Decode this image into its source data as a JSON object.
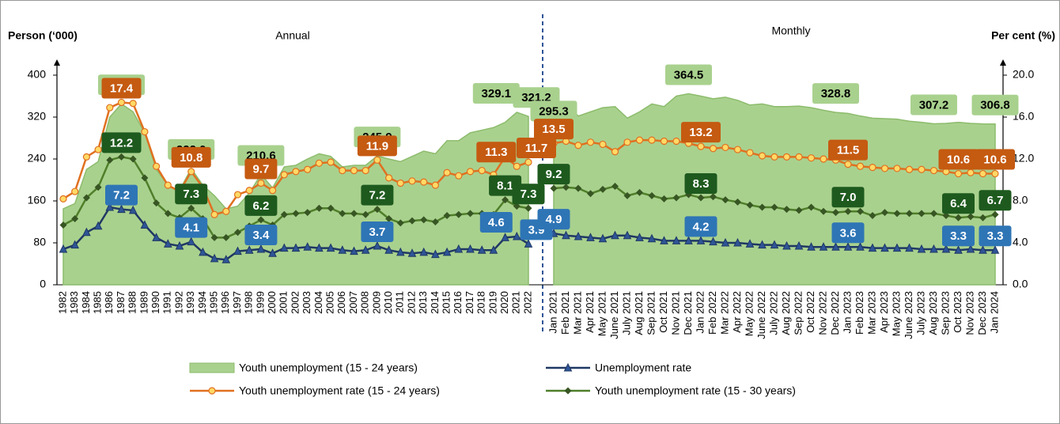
{
  "chart_data": {
    "type": "combo",
    "ylabel": "Person  (‘000)",
    "y2label": "Per cent (%)",
    "ylim": [
      0,
      400
    ],
    "yticks": [
      0,
      80,
      160,
      240,
      320,
      400
    ],
    "y2lim": [
      0,
      20
    ],
    "y2ticks": [
      {
        "value": 0,
        "label": "0.0"
      },
      {
        "value": 4,
        "label": "4.0"
      },
      {
        "value": 8,
        "label": "8.0"
      },
      {
        "value": 12,
        "label": "12.0"
      },
      {
        "value": 16,
        "label": "16.0"
      },
      {
        "value": 20,
        "label": "20.0"
      }
    ],
    "panels": [
      {
        "title": "Annual",
        "categories": [
          "1982",
          "1983",
          "1984",
          "1985",
          "1986",
          "1987",
          "1988",
          "1989",
          "1990",
          "1991",
          "1992",
          "1993",
          "1994",
          "1995",
          "1996",
          "1997",
          "1998",
          "1999",
          "2000",
          "2001",
          "2002",
          "2003",
          "2004",
          "2005",
          "2006",
          "2007",
          "2008",
          "2009",
          "2010",
          "2011",
          "2012",
          "2013",
          "2014",
          "2015",
          "2016",
          "2017",
          "2018",
          "2019",
          "2020",
          "2021",
          "2022"
        ]
      },
      {
        "title": "Monthly",
        "categories": [
          "Jan 2021",
          "Feb 2021",
          "Mar 2021",
          "Apr 2021",
          "May 2021",
          "June 2021",
          "July 2021",
          "Aug 2021",
          "Sep 2021",
          "Oct 2021",
          "Nov 2021",
          "Dec 2021",
          "Jan 2022",
          "Feb 2022",
          "Mar 2022",
          "Apr 2022",
          "May 2022",
          "June 2022",
          "July 2022",
          "Aug 2022",
          "Sep 2022",
          "Oct 2022",
          "Nov 2022",
          "Dec 2022",
          "Jan 2023",
          "Feb 2023",
          "Mar 2023",
          "Apr 2023",
          "May 2023",
          "June 2023",
          "July 2023",
          "Aug 2023",
          "Sep 2023",
          "Oct 2023",
          "Nov 2023",
          "Dec 2023",
          "Jan 2024"
        ]
      }
    ],
    "series": [
      {
        "name": "Youth unemployment (15 - 24 years)",
        "kind": "area",
        "axis": "y",
        "color": "#a9d18e",
        "label_fill": "#a9d18e",
        "values": [
          [
            145,
            155,
            220,
            235,
            320,
            345.3,
            330,
            290,
            220,
            190,
            180,
            222.0,
            190,
            170,
            145,
            150,
            175,
            210.6,
            185,
            225,
            228,
            240,
            250,
            245,
            225,
            228,
            228,
            245.9,
            240,
            235,
            245,
            255,
            250,
            275,
            275,
            290,
            295,
            300,
            310,
            329.1,
            321.2
          ],
          [
            295.3,
            345,
            322,
            330,
            338,
            340,
            318,
            330,
            345,
            340,
            360,
            364.5,
            360,
            355,
            358,
            352,
            343,
            345,
            340,
            340,
            341,
            338,
            333,
            328.8,
            327,
            322,
            318,
            317,
            316,
            312,
            310,
            307.2,
            308,
            310,
            308,
            307,
            306.8
          ]
        ],
        "value_labels": [
          [
            null,
            null,
            null,
            null,
            null,
            "345.3",
            null,
            null,
            null,
            null,
            null,
            "222.0",
            null,
            null,
            null,
            null,
            null,
            "210.6",
            null,
            null,
            null,
            null,
            null,
            null,
            null,
            null,
            null,
            "245.9",
            null,
            null,
            null,
            null,
            null,
            null,
            null,
            null,
            null,
            null,
            null,
            "329.1",
            "321.2"
          ],
          [
            "295.3",
            null,
            null,
            null,
            null,
            null,
            null,
            null,
            null,
            null,
            null,
            "364.5",
            null,
            null,
            null,
            null,
            null,
            null,
            null,
            null,
            null,
            null,
            null,
            "328.8",
            null,
            null,
            null,
            null,
            null,
            null,
            null,
            "307.2",
            null,
            null,
            null,
            null,
            "306.8"
          ]
        ]
      },
      {
        "name": "Unemployment rate",
        "kind": "triangle",
        "axis": "y2",
        "color": "#1f3864",
        "label_fill": "#2e75b6",
        "values": [
          [
            3.4,
            3.8,
            5.0,
            5.6,
            7.4,
            7.2,
            7.1,
            5.7,
            4.5,
            3.9,
            3.7,
            4.1,
            3.1,
            2.5,
            2.4,
            3.2,
            3.3,
            3.4,
            3.0,
            3.5,
            3.5,
            3.6,
            3.5,
            3.5,
            3.3,
            3.2,
            3.3,
            3.7,
            3.3,
            3.1,
            3.0,
            3.1,
            2.9,
            3.1,
            3.4,
            3.4,
            3.3,
            3.3,
            4.5,
            4.6,
            3.9
          ],
          [
            4.9,
            4.7,
            4.6,
            4.5,
            4.4,
            4.7,
            4.7,
            4.5,
            4.4,
            4.2,
            4.2,
            4.2,
            4.2,
            4.1,
            4.0,
            4.0,
            3.9,
            3.8,
            3.8,
            3.7,
            3.7,
            3.6,
            3.6,
            3.6,
            3.6,
            3.6,
            3.5,
            3.5,
            3.5,
            3.5,
            3.4,
            3.4,
            3.4,
            3.3,
            3.4,
            3.3,
            3.3
          ]
        ],
        "value_labels": [
          [
            null,
            null,
            null,
            null,
            null,
            "7.2",
            null,
            null,
            null,
            null,
            null,
            "4.1",
            null,
            null,
            null,
            null,
            null,
            "3.4",
            null,
            null,
            null,
            null,
            null,
            null,
            null,
            null,
            null,
            "3.7",
            null,
            null,
            null,
            null,
            null,
            null,
            null,
            null,
            null,
            null,
            null,
            "4.6",
            "3.9"
          ],
          [
            "4.9",
            null,
            null,
            null,
            null,
            null,
            null,
            null,
            null,
            null,
            null,
            null,
            "4.2",
            null,
            null,
            null,
            null,
            null,
            null,
            null,
            null,
            null,
            null,
            null,
            "3.6",
            null,
            null,
            null,
            null,
            null,
            null,
            null,
            null,
            "3.3",
            null,
            null,
            "3.3"
          ]
        ]
      },
      {
        "name": "Youth unemployment rate (15 - 24 years)",
        "kind": "circle",
        "axis": "y2",
        "color": "#e07020",
        "label_fill": "#c55a11",
        "values": [
          [
            8.2,
            8.9,
            12.2,
            12.9,
            16.9,
            17.4,
            17.3,
            14.6,
            11.3,
            9.5,
            8.9,
            10.8,
            9.3,
            6.7,
            7.0,
            8.6,
            9.0,
            9.7,
            9.0,
            10.5,
            10.8,
            11.0,
            11.6,
            11.7,
            10.9,
            10.9,
            10.9,
            11.9,
            10.2,
            9.7,
            9.9,
            9.8,
            9.5,
            10.7,
            10.4,
            10.8,
            10.9,
            10.5,
            12.2,
            11.3,
            11.7
          ],
          [
            13.5,
            13.7,
            13.3,
            13.6,
            13.4,
            12.7,
            13.6,
            13.8,
            13.8,
            13.7,
            13.7,
            13.5,
            13.2,
            13.0,
            13.1,
            12.9,
            12.6,
            12.3,
            12.2,
            12.2,
            12.2,
            12.1,
            12.0,
            11.9,
            11.5,
            11.3,
            11.2,
            11.1,
            11.1,
            11.0,
            11.0,
            10.9,
            10.8,
            10.6,
            10.7,
            10.6,
            10.6
          ]
        ],
        "value_labels": [
          [
            null,
            null,
            null,
            null,
            null,
            "17.4",
            null,
            null,
            null,
            null,
            null,
            "10.8",
            null,
            null,
            null,
            null,
            null,
            "9.7",
            null,
            null,
            null,
            null,
            null,
            null,
            null,
            null,
            null,
            "11.9",
            null,
            null,
            null,
            null,
            null,
            null,
            null,
            null,
            null,
            null,
            null,
            "11.3",
            "11.7"
          ],
          [
            "13.5",
            null,
            null,
            null,
            null,
            null,
            null,
            null,
            null,
            null,
            null,
            null,
            "13.2",
            null,
            null,
            null,
            null,
            null,
            null,
            null,
            null,
            null,
            null,
            null,
            "11.5",
            null,
            null,
            null,
            null,
            null,
            null,
            null,
            null,
            "10.6",
            null,
            null,
            "10.6"
          ]
        ]
      },
      {
        "name": "Youth unemployment rate (15 - 30 years)",
        "kind": "diamond",
        "axis": "y2",
        "color": "#4f7f2a",
        "label_fill": "#1e5a1e",
        "values": [
          [
            5.7,
            6.3,
            8.3,
            9.3,
            11.9,
            12.2,
            12.0,
            10.2,
            7.8,
            6.8,
            6.4,
            7.3,
            6.3,
            4.5,
            4.5,
            5.0,
            5.6,
            6.2,
            5.7,
            6.7,
            6.8,
            6.9,
            7.3,
            7.3,
            6.8,
            6.8,
            6.7,
            7.2,
            6.3,
            5.9,
            6.1,
            6.2,
            6.0,
            6.6,
            6.7,
            6.8,
            6.8,
            6.7,
            8.1,
            7.5,
            7.3
          ],
          [
            9.2,
            9.3,
            9.2,
            8.7,
            9.1,
            9.4,
            8.5,
            8.8,
            8.5,
            8.2,
            8.3,
            8.6,
            8.3,
            8.4,
            8.1,
            7.9,
            7.6,
            7.4,
            7.4,
            7.2,
            7.1,
            7.4,
            7.0,
            6.9,
            7.0,
            7.0,
            6.6,
            6.9,
            6.8,
            6.8,
            6.8,
            6.8,
            6.6,
            6.4,
            6.5,
            6.4,
            6.7
          ]
        ],
        "value_labels": [
          [
            null,
            null,
            null,
            null,
            null,
            "12.2",
            null,
            null,
            null,
            null,
            null,
            "7.3",
            null,
            null,
            null,
            null,
            null,
            "6.2",
            null,
            null,
            null,
            null,
            null,
            null,
            null,
            null,
            null,
            "7.2",
            null,
            null,
            null,
            null,
            null,
            null,
            null,
            null,
            null,
            null,
            "8.1",
            null,
            "7.3"
          ],
          [
            "9.2",
            null,
            null,
            null,
            null,
            null,
            null,
            null,
            null,
            null,
            null,
            null,
            "8.3",
            null,
            null,
            null,
            null,
            null,
            null,
            null,
            null,
            null,
            null,
            null,
            "7.0",
            null,
            null,
            null,
            null,
            null,
            null,
            null,
            null,
            "6.4",
            null,
            null,
            "6.7"
          ]
        ]
      }
    ]
  }
}
